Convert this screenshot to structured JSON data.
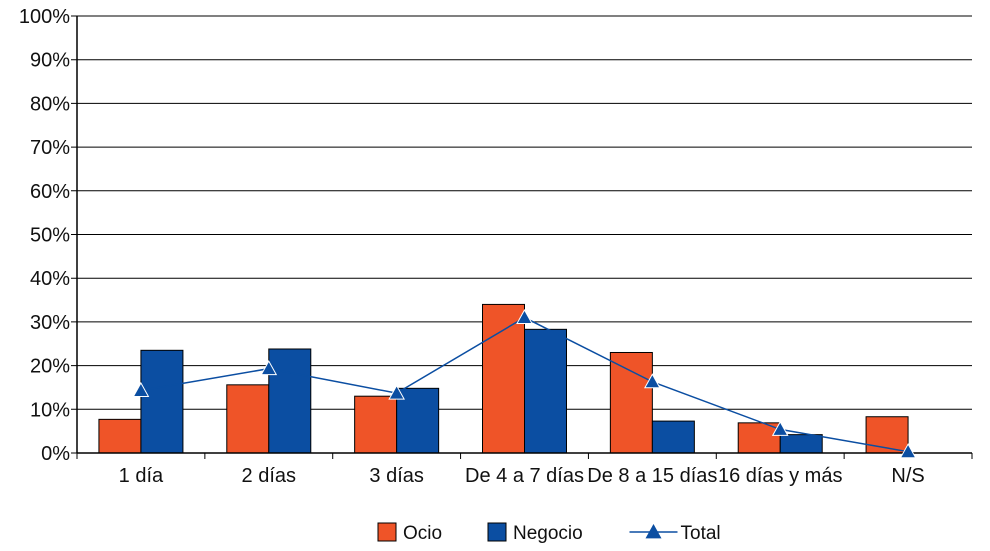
{
  "chart_data": {
    "type": "bar",
    "categories": [
      "1 día",
      "2 días",
      "3 días",
      "De 4 a 7 días",
      "De 8 a 15 días",
      "16 días y más",
      "N/S"
    ],
    "series": [
      {
        "name": "Ocio",
        "type": "bar",
        "color": "#ef5428",
        "values": [
          7.7,
          15.6,
          13.0,
          34.0,
          23.0,
          6.9,
          8.3
        ]
      },
      {
        "name": "Negocio",
        "type": "bar",
        "color": "#0b4ea2",
        "values": [
          23.5,
          23.8,
          14.8,
          28.3,
          7.3,
          4.2,
          null
        ]
      },
      {
        "name": "Total",
        "type": "line",
        "marker": "triangle",
        "color": "#0b4ea2",
        "values": [
          14.3,
          19.3,
          13.7,
          31.0,
          16.3,
          5.4,
          0.3
        ]
      }
    ],
    "y_ticks": [
      "0%",
      "10%",
      "20%",
      "30%",
      "40%",
      "50%",
      "60%",
      "70%",
      "80%",
      "90%",
      "100%"
    ],
    "ylim": [
      0,
      100
    ],
    "grid": true,
    "legend_position": "bottom-center",
    "title": "",
    "xlabel": "",
    "ylabel": ""
  }
}
